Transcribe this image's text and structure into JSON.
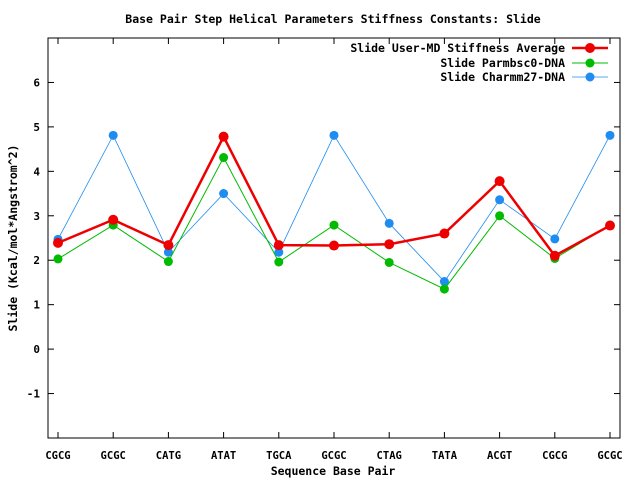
{
  "chart_data": {
    "type": "line",
    "title": "Base Pair Step Helical Parameters Stiffness Constants: Slide",
    "xlabel": "Sequence Base Pair",
    "ylabel": "Slide (Kcal/mol*Angstrom^2)",
    "categories": [
      "CGCG",
      "GCGC",
      "CATG",
      "ATAT",
      "TGCA",
      "GCGC",
      "CTAG",
      "TATA",
      "ACGT",
      "CGCG",
      "GCGC"
    ],
    "ylim": [
      -2,
      7
    ],
    "yticks": [
      -1,
      0,
      1,
      2,
      3,
      4,
      5,
      6
    ],
    "legend_position": "top-right",
    "grid": false,
    "series": [
      {
        "name": "Slide User-MD Stiffness Average",
        "color": "#ee0000",
        "values": [
          2.39,
          2.91,
          2.34,
          4.78,
          2.34,
          2.33,
          2.36,
          2.6,
          3.78,
          2.1,
          2.78
        ]
      },
      {
        "name": "Slide Parmbsc0-DNA",
        "color": "#00bb00",
        "values": [
          2.03,
          2.79,
          1.97,
          4.31,
          1.96,
          2.79,
          1.95,
          1.35,
          3.0,
          2.04,
          2.79
        ]
      },
      {
        "name": "Slide Charmm27-DNA",
        "color": "#1e8cf0",
        "values": [
          2.47,
          4.81,
          2.18,
          3.5,
          2.18,
          4.81,
          2.83,
          1.52,
          3.36,
          2.48,
          4.81
        ]
      }
    ]
  }
}
